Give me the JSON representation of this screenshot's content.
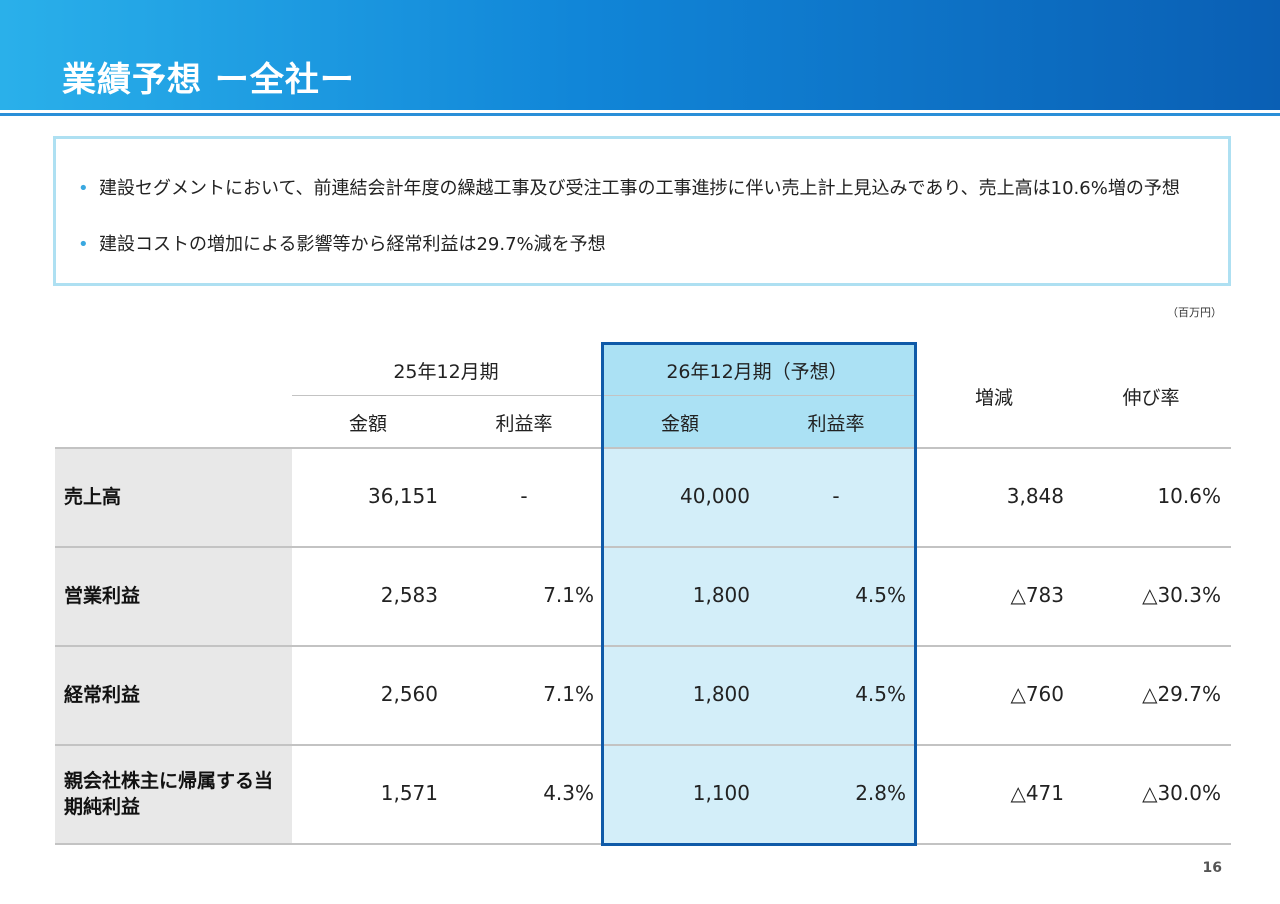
{
  "title": "業績予想 ー全社ー",
  "summary": {
    "bullets": [
      "建設セグメントにおいて、前連結会計年度の繰越工事及び受注工事の工事進捗に伴い売上計上見込みであり、売上高は10.6%増の予想",
      "建設コストの増加による影響等から経常利益は29.7%減を予想"
    ]
  },
  "unit": "（百万円）",
  "table": {
    "period1": "25年12月期",
    "period2": "26年12月期（予想）",
    "sub_amount": "金額",
    "sub_margin": "利益率",
    "col_change": "増減",
    "col_growth": "伸び率",
    "rows": [
      {
        "label": "売上高",
        "p1_amount": "36,151",
        "p1_margin": "-",
        "p2_amount": "40,000",
        "p2_margin": "-",
        "change": "3,848",
        "growth": "10.6%"
      },
      {
        "label": "営業利益",
        "p1_amount": "2,583",
        "p1_margin": "7.1%",
        "p2_amount": "1,800",
        "p2_margin": "4.5%",
        "change": "△783",
        "growth": "△30.3%"
      },
      {
        "label": "経常利益",
        "p1_amount": "2,560",
        "p1_margin": "7.1%",
        "p2_amount": "1,800",
        "p2_margin": "4.5%",
        "change": "△760",
        "growth": "△29.7%"
      },
      {
        "label": "親会社株主に帰属する当期純利益",
        "p1_amount": "1,571",
        "p1_margin": "4.3%",
        "p2_amount": "1,100",
        "p2_margin": "2.8%",
        "change": "△471",
        "growth": "△30.0%"
      }
    ]
  },
  "page_number": "16",
  "colors": {
    "header": "#1186d8",
    "highlight": "#d3eef9",
    "highlight_border": "#0f5aa8"
  }
}
